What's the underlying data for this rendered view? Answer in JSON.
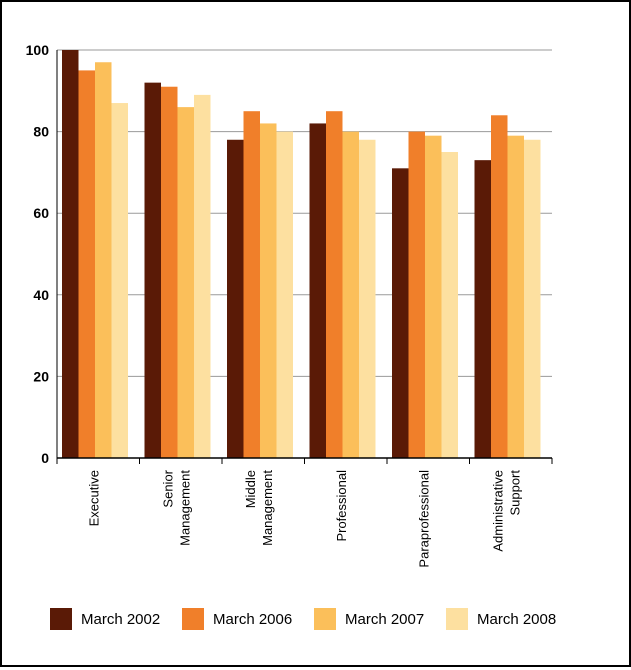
{
  "chart_data": {
    "type": "bar",
    "title": "",
    "xlabel": "",
    "ylabel": "",
    "ylim": [
      0,
      100
    ],
    "yticks": [
      0,
      20,
      40,
      60,
      80,
      100
    ],
    "grid": true,
    "legend_position": "bottom",
    "categories": [
      [
        "Executive"
      ],
      [
        "Senior",
        "Management"
      ],
      [
        "Middle",
        "Management"
      ],
      [
        "Professional"
      ],
      [
        "Paraprofessional"
      ],
      [
        "Administrative",
        "Support"
      ]
    ],
    "series": [
      {
        "name": "March 2002",
        "color": "#5a1a06",
        "values": [
          100,
          92,
          78,
          82,
          71,
          73
        ]
      },
      {
        "name": "March 2006",
        "color": "#f07f2a",
        "values": [
          95,
          91,
          85,
          85,
          80,
          84
        ]
      },
      {
        "name": "March 2007",
        "color": "#fbbf5a",
        "values": [
          97,
          86,
          82,
          80,
          79,
          79
        ]
      },
      {
        "name": "March 2008",
        "color": "#fde0a0",
        "values": [
          87,
          89,
          80,
          78,
          75,
          78
        ]
      }
    ]
  }
}
